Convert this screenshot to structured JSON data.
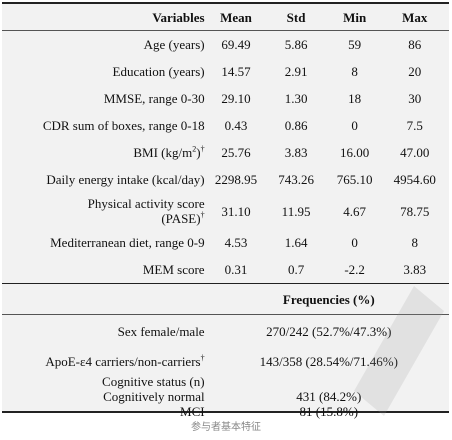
{
  "table": {
    "headers": [
      "Variables",
      "Mean",
      "Std",
      "Min",
      "Max"
    ],
    "rows": [
      {
        "label": "Age (years)",
        "mean": "69.49",
        "std": "5.86",
        "min": "59",
        "max": "86"
      },
      {
        "label": "Education (years)",
        "mean": "14.57",
        "std": "2.91",
        "min": "8",
        "max": "20"
      },
      {
        "label": "MMSE, range 0-30",
        "mean": "29.10",
        "std": "1.30",
        "min": "18",
        "max": "30"
      },
      {
        "label": "CDR sum of boxes, range 0-18",
        "mean": "0.43",
        "std": "0.86",
        "min": "0",
        "max": "7.5"
      },
      {
        "label_prefix": "BMI (kg/m",
        "label_sup": "2",
        "label_suffix": ")",
        "label_dagger": "†",
        "mean": "25.76",
        "std": "3.83",
        "min": "16.00",
        "max": "47.00"
      },
      {
        "label": "Daily energy intake (kcal/day)",
        "mean": "2298.95",
        "std": "743.26",
        "min": "765.10",
        "max": "4954.60"
      },
      {
        "label_line1": "Physical activity score",
        "label_line2": "(PASE)",
        "label_dagger": "†",
        "mean": "31.10",
        "std": "11.95",
        "min": "4.67",
        "max": "78.75"
      },
      {
        "label": "Mediterranean diet, range 0-9",
        "mean": "4.53",
        "std": "1.64",
        "min": "0",
        "max": "8"
      },
      {
        "label": "MEM score",
        "mean": "0.31",
        "std": "0.7",
        "min": "-2.2",
        "max": "3.83"
      }
    ],
    "freq_header": "Frequencies (%)",
    "freq_rows": {
      "sex": {
        "label": "Sex female/male",
        "value": "270/242 (52.7%/47.3%)"
      },
      "apoe": {
        "label": "ApoE-ε4 carriers/non-carriers",
        "dagger": "†",
        "value": "143/358 (28.54%/71.46%)"
      },
      "cog_title": "Cognitive status (n)",
      "cog_normal": {
        "label": "Cognitively normal",
        "value": "431 (84.2%)"
      },
      "mci": {
        "label": "MCI",
        "value": "81 (15.8%)"
      }
    }
  },
  "caption": "参与者基本特征"
}
